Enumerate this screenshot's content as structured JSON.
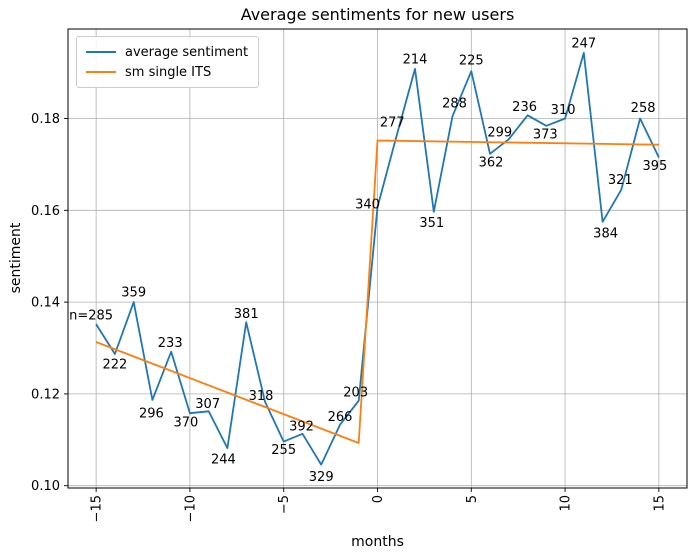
{
  "chart_data": {
    "type": "line",
    "title": "Average sentiments for new users",
    "xlabel": "months",
    "ylabel": "sentiment",
    "xlim": [
      -16.5,
      16.5
    ],
    "ylim": [
      0.0995,
      0.1995
    ],
    "xticks": [
      -15,
      -10,
      -5,
      0,
      5,
      10,
      15
    ],
    "yticks": [
      0.1,
      0.12,
      0.14,
      0.16,
      0.18
    ],
    "grid": true,
    "grid_color": "#b0b0b0",
    "spine_color": "#000000",
    "legend": {
      "position": "upper-left",
      "entries": [
        {
          "label": "average sentiment",
          "color": "#1f77b4"
        },
        {
          "label": "sm single ITS",
          "color": "#ff7f0e"
        }
      ]
    },
    "series": [
      {
        "name": "average sentiment",
        "color": "#1f77b4",
        "points": [
          {
            "x": -15,
            "y": 0.1352,
            "label": "n=285",
            "dx": -5,
            "dy": -8
          },
          {
            "x": -14,
            "y": 0.1287,
            "label": "222",
            "dx": 0,
            "dy": 11
          },
          {
            "x": -13,
            "y": 0.14,
            "label": "359",
            "dx": 0,
            "dy": -9
          },
          {
            "x": -12,
            "y": 0.1187,
            "label": "296",
            "dx": -1,
            "dy": 14
          },
          {
            "x": -11,
            "y": 0.1292,
            "label": "233",
            "dx": -1,
            "dy": -8
          },
          {
            "x": -10,
            "y": 0.1158,
            "label": "370",
            "dx": -4,
            "dy": 10
          },
          {
            "x": -9,
            "y": 0.1162,
            "label": "307",
            "dx": -1,
            "dy": -7
          },
          {
            "x": -8,
            "y": 0.1082,
            "label": "244",
            "dx": -4,
            "dy": 12
          },
          {
            "x": -7,
            "y": 0.1356,
            "label": "381",
            "dx": 0,
            "dy": -8
          },
          {
            "x": -6,
            "y": 0.1183,
            "label": "318",
            "dx": -4,
            "dy": -5
          },
          {
            "x": -5,
            "y": 0.1096,
            "label": "255",
            "dx": 0,
            "dy": 9
          },
          {
            "x": -4,
            "y": 0.1113,
            "label": "392",
            "dx": -1,
            "dy": -7
          },
          {
            "x": -3,
            "y": 0.1046,
            "label": "329",
            "dx": 0,
            "dy": 13
          },
          {
            "x": -2,
            "y": 0.1133,
            "label": "266",
            "dx": 0,
            "dy": -7
          },
          {
            "x": -1,
            "y": 0.1185,
            "label": "203",
            "dx": -3,
            "dy": -8
          },
          {
            "x": 0,
            "y": 0.1607,
            "label": "340",
            "dx": -10,
            "dy": -2
          },
          {
            "x": 1,
            "y": 0.176,
            "label": "277",
            "dx": -4,
            "dy": -14
          },
          {
            "x": 2,
            "y": 0.1908,
            "label": "214",
            "dx": 0,
            "dy": -9
          },
          {
            "x": 3,
            "y": 0.1597,
            "label": "351",
            "dx": -2,
            "dy": 12
          },
          {
            "x": 4,
            "y": 0.1805,
            "label": "288",
            "dx": 2,
            "dy": -12
          },
          {
            "x": 5,
            "y": 0.1903,
            "label": "225",
            "dx": 0,
            "dy": -10
          },
          {
            "x": 6,
            "y": 0.1723,
            "label": "362",
            "dx": 1,
            "dy": 9
          },
          {
            "x": 7,
            "y": 0.1755,
            "label": "299",
            "dx": -9,
            "dy": -6
          },
          {
            "x": 8,
            "y": 0.1807,
            "label": "236",
            "dx": -3,
            "dy": -8
          },
          {
            "x": 9,
            "y": 0.1784,
            "label": "373",
            "dx": -1,
            "dy": 9
          },
          {
            "x": 10,
            "y": 0.18,
            "label": "310",
            "dx": -2,
            "dy": -8
          },
          {
            "x": 11,
            "y": 0.1943,
            "label": "247",
            "dx": 0,
            "dy": -9
          },
          {
            "x": 12,
            "y": 0.1575,
            "label": "384",
            "dx": 3,
            "dy": 12
          },
          {
            "x": 13,
            "y": 0.1645,
            "label": "321",
            "dx": -1,
            "dy": -9
          },
          {
            "x": 14,
            "y": 0.18,
            "label": "258",
            "dx": 3,
            "dy": -10
          },
          {
            "x": 15,
            "y": 0.1715,
            "label": "395",
            "dx": -4,
            "dy": 9
          }
        ]
      },
      {
        "name": "sm single ITS",
        "color": "#ff7f0e",
        "points": [
          {
            "x": -15,
            "y": 0.1313
          },
          {
            "x": -1,
            "y": 0.1093
          },
          {
            "x": 0,
            "y": 0.1752
          },
          {
            "x": 15,
            "y": 0.1743
          }
        ]
      }
    ]
  }
}
